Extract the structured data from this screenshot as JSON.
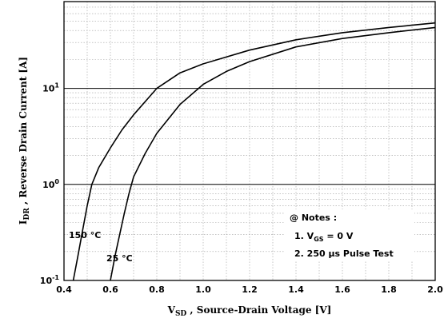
{
  "chart_data": {
    "type": "line",
    "scale": {
      "x": "linear",
      "y": "log"
    },
    "xlim": [
      0.4,
      2.0
    ],
    "ylim": [
      0.1,
      80
    ],
    "x_ticks": [
      {
        "v": 0.4,
        "label": "0.4"
      },
      {
        "v": 0.6,
        "label": "0.6"
      },
      {
        "v": 0.8,
        "label": "0.8"
      },
      {
        "v": 1.0,
        "label": "1.0"
      },
      {
        "v": 1.2,
        "label": "1.2"
      },
      {
        "v": 1.4,
        "label": "1.4"
      },
      {
        "v": 1.6,
        "label": "1.6"
      },
      {
        "v": 1.8,
        "label": "1.8"
      },
      {
        "v": 2.0,
        "label": "2.0"
      }
    ],
    "y_ticks": [
      {
        "v": 0.1,
        "base": "10",
        "exp": "-1"
      },
      {
        "v": 1,
        "base": "10",
        "exp": "0"
      },
      {
        "v": 10,
        "base": "10",
        "exp": "1"
      }
    ],
    "xlabel": {
      "main": "V",
      "sub": "SD",
      "rest": " , Source-Drain Voltage  [V]"
    },
    "ylabel": {
      "main": "I",
      "sub": "DR",
      "rest": " , Reverse Drain Current  [A]"
    },
    "series": [
      {
        "name": "150 °C",
        "x": [
          0.44,
          0.46,
          0.48,
          0.5,
          0.52,
          0.55,
          0.6,
          0.65,
          0.7,
          0.8,
          0.9,
          1.0,
          1.2,
          1.4,
          1.6,
          1.8,
          2.0
        ],
        "y": [
          0.1,
          0.18,
          0.33,
          0.6,
          1.0,
          1.5,
          2.4,
          3.7,
          5.3,
          10,
          14.5,
          18,
          25,
          32,
          38,
          43,
          48
        ]
      },
      {
        "name": "25 °C",
        "x": [
          0.6,
          0.62,
          0.64,
          0.66,
          0.68,
          0.7,
          0.75,
          0.8,
          0.9,
          1.0,
          1.1,
          1.2,
          1.4,
          1.6,
          1.8,
          2.0
        ],
        "y": [
          0.1,
          0.18,
          0.3,
          0.5,
          0.8,
          1.2,
          2.1,
          3.4,
          6.8,
          11,
          15,
          19,
          27,
          33,
          38,
          43
        ]
      }
    ],
    "notes": {
      "title": "@ Notes :",
      "line1_prefix": "1. V",
      "line1_sub": "GS",
      "line1_suffix": " = 0 V",
      "line2": "2. 250 μs Pulse Test"
    },
    "grid": true,
    "legend": "none"
  }
}
